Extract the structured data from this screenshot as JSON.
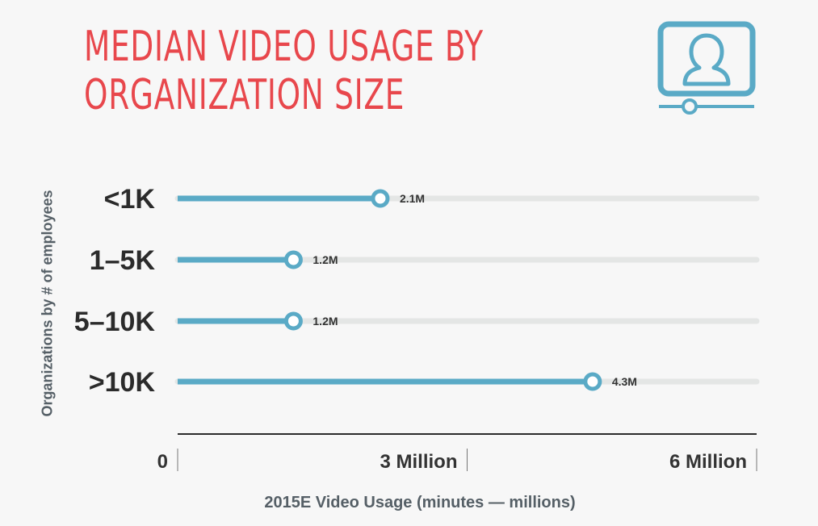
{
  "title": {
    "line1": "MEDIAN VIDEO USAGE BY",
    "line2": "ORGANIZATION SIZE"
  },
  "icon": {
    "name": "video-presenter-icon",
    "color": "#5aaac6"
  },
  "colors": {
    "title": "#e8474c",
    "bar": "#5aaac6",
    "track": "#e4e6e5",
    "text": "#2b2b2b",
    "axis_title": "#555f66"
  },
  "chart_data": {
    "type": "bar",
    "orientation": "horizontal",
    "categories": [
      "<1K",
      "1–5K",
      "5–10K",
      ">10K"
    ],
    "values": [
      2.1,
      1.2,
      1.2,
      4.3
    ],
    "value_labels": [
      "2.1M",
      "1.2M",
      "1.2M",
      "4.3M"
    ],
    "xlabel": "2015E Video Usage (minutes — millions)",
    "ylabel": "Organizations by # of employees",
    "xlim": [
      0,
      6
    ],
    "x_ticks": [
      {
        "value": 0,
        "label": "0"
      },
      {
        "value": 3,
        "label": "3 Million"
      },
      {
        "value": 6,
        "label": "6 Million"
      }
    ],
    "grid": false
  }
}
